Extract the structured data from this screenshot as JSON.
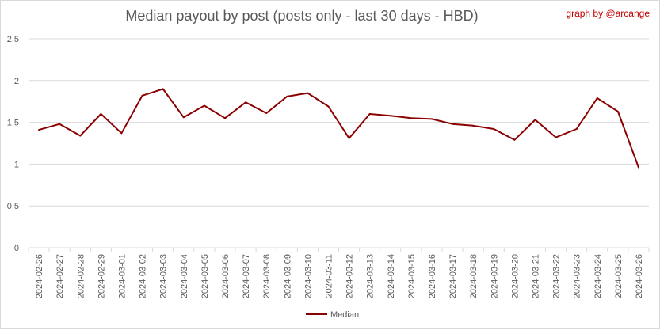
{
  "chart_title": "Median payout by post (posts only - last 30 days - HBD)",
  "credit": "graph by @arcange",
  "colors": {
    "series": "#8b0000",
    "grid": "#d9d9d9",
    "text": "#595959",
    "credit": "#c00000"
  },
  "chart_data": {
    "type": "line",
    "title": "Median payout by post (posts only - last 30 days - HBD)",
    "xlabel": "",
    "ylabel": "",
    "ylim": [
      0,
      2.5
    ],
    "yticks": [
      "0",
      "0,5",
      "1",
      "1,5",
      "2",
      "2,5"
    ],
    "yticks_values": [
      0,
      0.5,
      1,
      1.5,
      2,
      2.5
    ],
    "grid": true,
    "legend": "bottom",
    "categories": [
      "2024-02-26",
      "2024-02-27",
      "2024-02-28",
      "2024-02-29",
      "2024-03-01",
      "2024-03-02",
      "2024-03-03",
      "2024-03-04",
      "2024-03-05",
      "2024-03-06",
      "2024-03-07",
      "2024-03-08",
      "2024-03-09",
      "2024-03-10",
      "2024-03-11",
      "2024-03-12",
      "2024-03-13",
      "2024-03-14",
      "2024-03-15",
      "2024-03-16",
      "2024-03-17",
      "2024-03-18",
      "2024-03-19",
      "2024-03-20",
      "2024-03-21",
      "2024-03-22",
      "2024-03-23",
      "2024-03-24",
      "2024-03-25",
      "2024-03-26"
    ],
    "series": [
      {
        "name": "Median",
        "values": [
          1.41,
          1.48,
          1.34,
          1.6,
          1.37,
          1.82,
          1.9,
          1.56,
          1.7,
          1.55,
          1.74,
          1.61,
          1.81,
          1.85,
          1.69,
          1.31,
          1.6,
          1.58,
          1.55,
          1.54,
          1.48,
          1.46,
          1.42,
          1.29,
          1.53,
          1.32,
          1.42,
          1.79,
          1.63,
          0.96
        ]
      }
    ]
  }
}
